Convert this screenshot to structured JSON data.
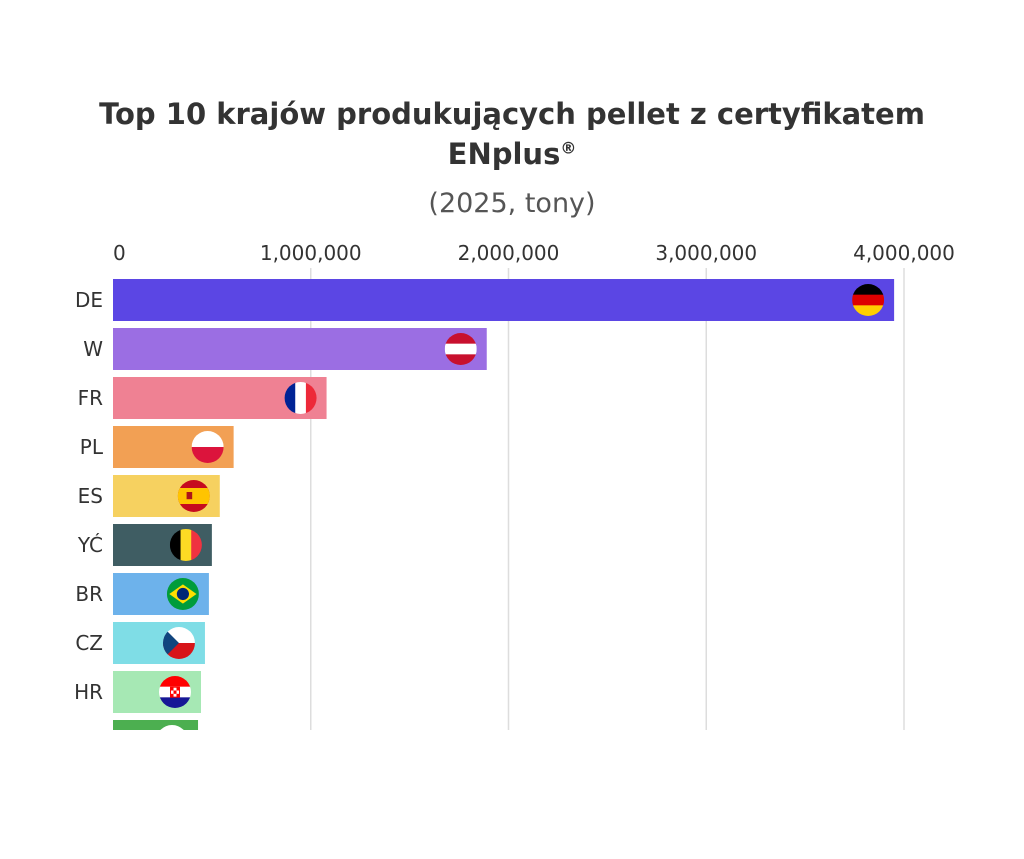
{
  "chart_data": {
    "type": "bar",
    "orientation": "horizontal",
    "title": "Top 10 krajów produkujących pellet z certyfikatem ENplus",
    "title_line1": "Top 10 krajów produkujących pellet z certyfikatem",
    "title_line2": "ENplus",
    "title_mark": "®",
    "subtitle": "(2025, tony)",
    "xlim": [
      0,
      4000000
    ],
    "x_ticks": [
      0,
      1000000,
      2000000,
      3000000,
      4000000
    ],
    "x_tick_labels": [
      "0",
      "1,000,000",
      "2,000,000",
      "3,000,000",
      "4,000,000"
    ],
    "axis_position": "top",
    "grid": true,
    "categories": [
      "DE",
      "W",
      "FR",
      "PL",
      "ES",
      "YĆ",
      "BR",
      "CZ",
      "HR",
      ""
    ],
    "values": [
      3950000,
      1890000,
      1080000,
      610000,
      540000,
      500000,
      485000,
      465000,
      445000,
      430000
    ],
    "colors": [
      "#5b46e4",
      "#9b6ee3",
      "#ef8193",
      "#f2a054",
      "#f6d160",
      "#3f5d63",
      "#6db2eb",
      "#7fdde6",
      "#a6e8b4",
      "#4caf50"
    ],
    "flag_icons": [
      "germany-flag-icon",
      "austria-flag-icon",
      "france-flag-icon",
      "poland-flag-icon",
      "spain-flag-icon",
      "belgium-flag-icon",
      "brazil-flag-icon",
      "czech-flag-icon",
      "croatia-flag-icon",
      "flag-icon"
    ]
  }
}
